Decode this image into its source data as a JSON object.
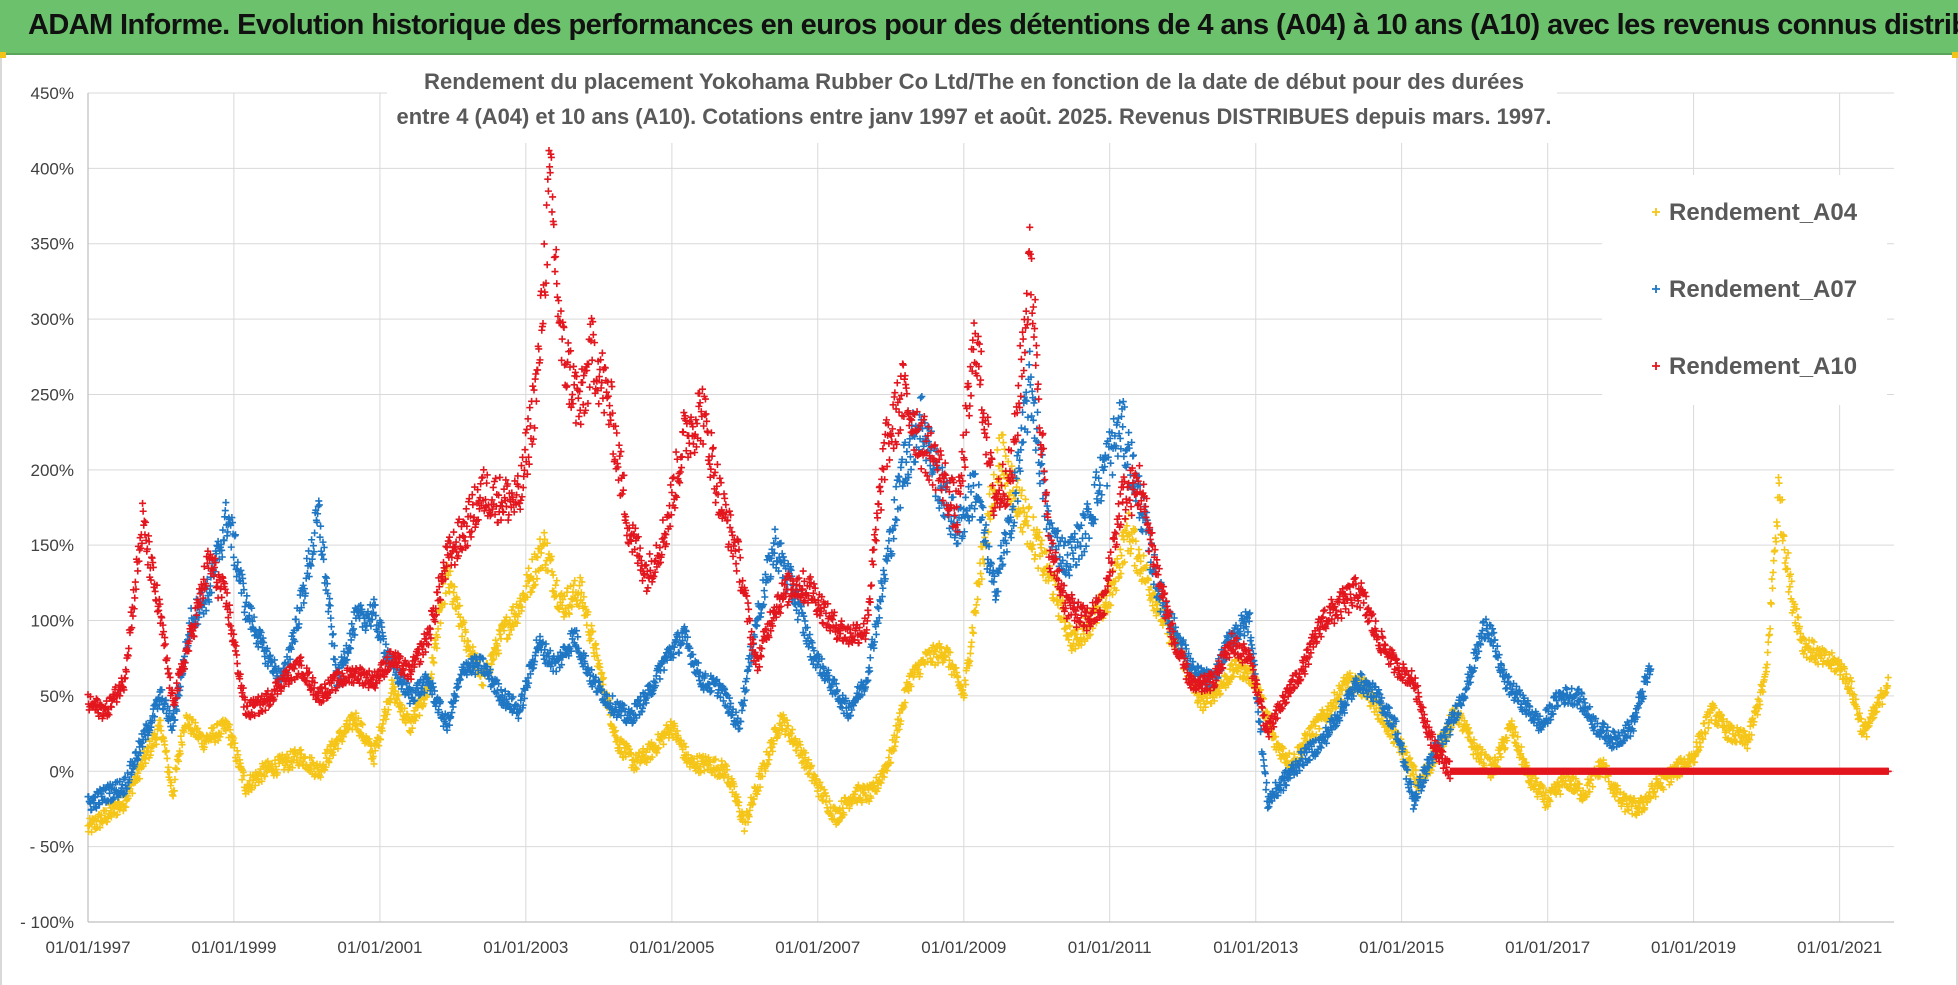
{
  "banner": {
    "title": "ADAM Informe. Evolution historique des performances en euros pour des détentions de 4 ans (A04) à 10 ans (A10) avec les revenus connus distribués"
  },
  "colors": {
    "banner_bg": "#6cc26c",
    "a04": "#f5c518",
    "a07": "#1f77c4",
    "a10": "#e3161e",
    "grid": "#d9d9d9",
    "axis_text": "#404040",
    "title_text": "#595959"
  },
  "chart_data": {
    "type": "scatter",
    "title_lines": [
      "Rendement du placement Yokohama Rubber Co Ltd/The en fonction de la date de début pour des durées",
      "entre 4 (A04) et 10 ans (A10). Cotations entre janv 1997 et août. 2025. Revenus DISTRIBUES depuis mars. 1997."
    ],
    "marker": "+",
    "x_axis": {
      "type": "date",
      "range": [
        "1997-01-01",
        "2021-09-30"
      ],
      "ticks": [
        "01/01/1997",
        "01/01/1999",
        "01/01/2001",
        "01/01/2003",
        "01/01/2005",
        "01/01/2007",
        "01/01/2009",
        "01/01/2011",
        "01/01/2013",
        "01/01/2015",
        "01/01/2017",
        "01/01/2019",
        "01/01/2021"
      ]
    },
    "y_axis": {
      "unit": "%",
      "range": [
        -100,
        450
      ],
      "ticks": [
        "- 100%",
        "- 50%",
        "0%",
        "50%",
        "100%",
        "150%",
        "200%",
        "250%",
        "300%",
        "350%",
        "400%",
        "450%"
      ]
    },
    "grid": true,
    "legend_position": "right",
    "series": [
      {
        "name": "Rendement_A04",
        "color": "#f5c518",
        "points": [
          [
            "1997-01-01",
            -38
          ],
          [
            "1997-04-01",
            -30
          ],
          [
            "1997-07-01",
            -20
          ],
          [
            "1997-10-01",
            5
          ],
          [
            "1998-01-01",
            30
          ],
          [
            "1998-03-01",
            -15
          ],
          [
            "1998-05-01",
            35
          ],
          [
            "1998-08-01",
            20
          ],
          [
            "1998-12-01",
            30
          ],
          [
            "1999-03-01",
            -10
          ],
          [
            "1999-06-01",
            0
          ],
          [
            "1999-09-01",
            5
          ],
          [
            "1999-12-01",
            10
          ],
          [
            "2000-03-01",
            0
          ],
          [
            "2000-06-01",
            20
          ],
          [
            "2000-09-01",
            35
          ],
          [
            "2000-12-01",
            10
          ],
          [
            "2001-03-01",
            55
          ],
          [
            "2001-06-01",
            30
          ],
          [
            "2001-09-01",
            55
          ],
          [
            "2001-12-01",
            130
          ],
          [
            "2002-03-01",
            90
          ],
          [
            "2002-06-01",
            60
          ],
          [
            "2002-09-01",
            90
          ],
          [
            "2002-12-01",
            110
          ],
          [
            "2003-04-01",
            150
          ],
          [
            "2003-07-01",
            110
          ],
          [
            "2003-10-01",
            120
          ],
          [
            "2004-01-01",
            70
          ],
          [
            "2004-04-01",
            20
          ],
          [
            "2004-07-01",
            5
          ],
          [
            "2004-10-01",
            15
          ],
          [
            "2005-01-01",
            30
          ],
          [
            "2005-04-01",
            5
          ],
          [
            "2005-07-01",
            5
          ],
          [
            "2005-10-01",
            0
          ],
          [
            "2006-01-01",
            -35
          ],
          [
            "2006-04-01",
            0
          ],
          [
            "2006-07-01",
            35
          ],
          [
            "2006-10-01",
            15
          ],
          [
            "2007-01-01",
            -10
          ],
          [
            "2007-04-01",
            -30
          ],
          [
            "2007-07-01",
            -15
          ],
          [
            "2007-10-01",
            -15
          ],
          [
            "2008-01-01",
            10
          ],
          [
            "2008-04-01",
            60
          ],
          [
            "2008-07-01",
            75
          ],
          [
            "2008-10-01",
            80
          ],
          [
            "2009-01-01",
            50
          ],
          [
            "2009-04-01",
            140
          ],
          [
            "2009-07-01",
            210
          ],
          [
            "2009-10-01",
            180
          ],
          [
            "2010-01-01",
            150
          ],
          [
            "2010-04-01",
            120
          ],
          [
            "2010-07-01",
            85
          ],
          [
            "2010-10-01",
            100
          ],
          [
            "2011-01-01",
            115
          ],
          [
            "2011-04-01",
            160
          ],
          [
            "2011-07-01",
            130
          ],
          [
            "2011-10-01",
            100
          ],
          [
            "2012-01-01",
            75
          ],
          [
            "2012-04-01",
            45
          ],
          [
            "2012-07-01",
            55
          ],
          [
            "2012-10-01",
            70
          ],
          [
            "2013-01-01",
            60
          ],
          [
            "2013-04-01",
            20
          ],
          [
            "2013-07-01",
            5
          ],
          [
            "2013-10-01",
            25
          ],
          [
            "2014-01-01",
            40
          ],
          [
            "2014-04-01",
            60
          ],
          [
            "2014-07-01",
            55
          ],
          [
            "2014-10-01",
            35
          ],
          [
            "2015-01-01",
            15
          ],
          [
            "2015-04-01",
            -10
          ],
          [
            "2015-07-01",
            15
          ],
          [
            "2015-10-01",
            40
          ],
          [
            "2016-01-01",
            15
          ],
          [
            "2016-04-01",
            0
          ],
          [
            "2016-07-01",
            30
          ],
          [
            "2016-10-01",
            -5
          ],
          [
            "2017-01-01",
            -20
          ],
          [
            "2017-04-01",
            -5
          ],
          [
            "2017-07-01",
            -15
          ],
          [
            "2017-10-01",
            5
          ],
          [
            "2018-01-01",
            -20
          ],
          [
            "2018-04-01",
            -25
          ],
          [
            "2018-07-01",
            -10
          ],
          [
            "2018-10-01",
            0
          ],
          [
            "2019-01-01",
            10
          ],
          [
            "2019-04-01",
            40
          ],
          [
            "2019-07-01",
            25
          ],
          [
            "2019-10-01",
            20
          ],
          [
            "2020-01-01",
            65
          ],
          [
            "2020-03-01",
            185
          ],
          [
            "2020-05-01",
            120
          ],
          [
            "2020-07-01",
            85
          ],
          [
            "2020-10-01",
            75
          ],
          [
            "2021-01-01",
            70
          ],
          [
            "2021-03-01",
            55
          ],
          [
            "2021-05-01",
            25
          ],
          [
            "2021-07-01",
            40
          ],
          [
            "2021-09-01",
            60
          ]
        ]
      },
      {
        "name": "Rendement_A07",
        "color": "#1f77c4",
        "points": [
          [
            "1997-01-01",
            -22
          ],
          [
            "1997-04-01",
            -15
          ],
          [
            "1997-07-01",
            -10
          ],
          [
            "1997-10-01",
            20
          ],
          [
            "1998-01-01",
            50
          ],
          [
            "1998-03-01",
            30
          ],
          [
            "1998-06-01",
            100
          ],
          [
            "1998-09-01",
            120
          ],
          [
            "1998-12-01",
            170
          ],
          [
            "1999-03-01",
            110
          ],
          [
            "1999-06-01",
            80
          ],
          [
            "1999-09-01",
            60
          ],
          [
            "1999-12-01",
            110
          ],
          [
            "2000-03-01",
            170
          ],
          [
            "2000-06-01",
            60
          ],
          [
            "2000-09-01",
            100
          ],
          [
            "2000-12-01",
            105
          ],
          [
            "2001-03-01",
            70
          ],
          [
            "2001-06-01",
            50
          ],
          [
            "2001-09-01",
            60
          ],
          [
            "2001-12-01",
            30
          ],
          [
            "2002-03-01",
            70
          ],
          [
            "2002-06-01",
            70
          ],
          [
            "2002-09-01",
            50
          ],
          [
            "2002-12-01",
            40
          ],
          [
            "2003-03-01",
            85
          ],
          [
            "2003-06-01",
            70
          ],
          [
            "2003-09-01",
            90
          ],
          [
            "2003-12-01",
            60
          ],
          [
            "2004-03-01",
            45
          ],
          [
            "2004-06-01",
            35
          ],
          [
            "2004-09-01",
            50
          ],
          [
            "2004-12-01",
            75
          ],
          [
            "2005-03-01",
            90
          ],
          [
            "2005-06-01",
            60
          ],
          [
            "2005-09-01",
            55
          ],
          [
            "2005-12-01",
            30
          ],
          [
            "2006-03-01",
            100
          ],
          [
            "2006-06-01",
            150
          ],
          [
            "2006-09-01",
            120
          ],
          [
            "2006-12-01",
            80
          ],
          [
            "2007-03-01",
            60
          ],
          [
            "2007-06-01",
            40
          ],
          [
            "2007-09-01",
            60
          ],
          [
            "2007-12-01",
            130
          ],
          [
            "2008-03-01",
            200
          ],
          [
            "2008-06-01",
            235
          ],
          [
            "2008-09-01",
            190
          ],
          [
            "2008-12-01",
            160
          ],
          [
            "2009-03-01",
            190
          ],
          [
            "2009-06-01",
            120
          ],
          [
            "2009-09-01",
            170
          ],
          [
            "2009-12-01",
            260
          ],
          [
            "2010-03-01",
            160
          ],
          [
            "2010-06-01",
            140
          ],
          [
            "2010-09-01",
            160
          ],
          [
            "2010-12-01",
            200
          ],
          [
            "2011-03-01",
            230
          ],
          [
            "2011-06-01",
            180
          ],
          [
            "2011-09-01",
            120
          ],
          [
            "2011-12-01",
            90
          ],
          [
            "2012-03-01",
            65
          ],
          [
            "2012-06-01",
            60
          ],
          [
            "2012-09-01",
            90
          ],
          [
            "2012-12-01",
            100
          ],
          [
            "2013-03-01",
            -20
          ],
          [
            "2013-06-01",
            -5
          ],
          [
            "2013-09-01",
            10
          ],
          [
            "2013-12-01",
            20
          ],
          [
            "2014-03-01",
            40
          ],
          [
            "2014-06-01",
            60
          ],
          [
            "2014-09-01",
            50
          ],
          [
            "2014-12-01",
            30
          ],
          [
            "2015-03-01",
            -20
          ],
          [
            "2015-06-01",
            10
          ],
          [
            "2015-09-01",
            30
          ],
          [
            "2015-12-01",
            60
          ],
          [
            "2016-03-01",
            100
          ],
          [
            "2016-06-01",
            60
          ],
          [
            "2016-09-01",
            45
          ],
          [
            "2016-12-01",
            30
          ],
          [
            "2017-03-01",
            50
          ],
          [
            "2017-06-01",
            50
          ],
          [
            "2017-09-01",
            30
          ],
          [
            "2017-12-01",
            20
          ],
          [
            "2018-03-01",
            30
          ],
          [
            "2018-06-01",
            70
          ]
        ]
      },
      {
        "name": "Rendement_A10",
        "color": "#e3161e",
        "points": [
          [
            "1997-01-01",
            45
          ],
          [
            "1997-04-01",
            40
          ],
          [
            "1997-07-01",
            60
          ],
          [
            "1997-10-01",
            165
          ],
          [
            "1998-01-01",
            100
          ],
          [
            "1998-03-01",
            45
          ],
          [
            "1998-06-01",
            90
          ],
          [
            "1998-09-01",
            140
          ],
          [
            "1998-12-01",
            110
          ],
          [
            "1999-03-01",
            40
          ],
          [
            "1999-06-01",
            45
          ],
          [
            "1999-09-01",
            60
          ],
          [
            "1999-12-01",
            70
          ],
          [
            "2000-03-01",
            50
          ],
          [
            "2000-06-01",
            60
          ],
          [
            "2000-09-01",
            65
          ],
          [
            "2000-12-01",
            60
          ],
          [
            "2001-03-01",
            75
          ],
          [
            "2001-06-01",
            65
          ],
          [
            "2001-09-01",
            90
          ],
          [
            "2001-12-01",
            140
          ],
          [
            "2002-03-01",
            160
          ],
          [
            "2002-06-01",
            185
          ],
          [
            "2002-09-01",
            180
          ],
          [
            "2002-12-01",
            180
          ],
          [
            "2003-03-01",
            260
          ],
          [
            "2003-05-01",
            390
          ],
          [
            "2003-07-01",
            280
          ],
          [
            "2003-10-01",
            240
          ],
          [
            "2003-12-01",
            280
          ],
          [
            "2004-03-01",
            240
          ],
          [
            "2004-06-01",
            160
          ],
          [
            "2004-09-01",
            130
          ],
          [
            "2004-12-01",
            160
          ],
          [
            "2005-03-01",
            220
          ],
          [
            "2005-06-01",
            240
          ],
          [
            "2005-09-01",
            180
          ],
          [
            "2005-12-01",
            140
          ],
          [
            "2006-03-01",
            70
          ],
          [
            "2006-06-01",
            110
          ],
          [
            "2006-09-01",
            125
          ],
          [
            "2006-12-01",
            120
          ],
          [
            "2007-03-01",
            100
          ],
          [
            "2007-06-01",
            90
          ],
          [
            "2007-09-01",
            95
          ],
          [
            "2007-12-01",
            210
          ],
          [
            "2008-03-01",
            250
          ],
          [
            "2008-06-01",
            220
          ],
          [
            "2008-09-01",
            200
          ],
          [
            "2008-12-01",
            170
          ],
          [
            "2009-03-01",
            290
          ],
          [
            "2009-06-01",
            180
          ],
          [
            "2009-09-01",
            200
          ],
          [
            "2009-12-01",
            340
          ],
          [
            "2010-03-01",
            150
          ],
          [
            "2010-06-01",
            110
          ],
          [
            "2010-09-01",
            100
          ],
          [
            "2010-12-01",
            110
          ],
          [
            "2011-03-01",
            180
          ],
          [
            "2011-06-01",
            190
          ],
          [
            "2011-09-01",
            130
          ],
          [
            "2011-12-01",
            80
          ],
          [
            "2012-03-01",
            55
          ],
          [
            "2012-06-01",
            60
          ],
          [
            "2012-09-01",
            85
          ],
          [
            "2012-12-01",
            75
          ],
          [
            "2013-03-01",
            25
          ],
          [
            "2013-06-01",
            50
          ],
          [
            "2013-09-01",
            70
          ],
          [
            "2013-12-01",
            100
          ],
          [
            "2014-03-01",
            110
          ],
          [
            "2014-06-01",
            120
          ],
          [
            "2014-09-01",
            90
          ],
          [
            "2014-12-01",
            70
          ],
          [
            "2015-03-01",
            60
          ],
          [
            "2015-06-01",
            20
          ],
          [
            "2015-09-01",
            0
          ],
          [
            "2016-06-01",
            0
          ],
          [
            "2017-06-01",
            0
          ],
          [
            "2018-06-01",
            0
          ],
          [
            "2019-06-01",
            0
          ],
          [
            "2020-06-01",
            0
          ],
          [
            "2021-09-01",
            0
          ]
        ]
      }
    ]
  }
}
